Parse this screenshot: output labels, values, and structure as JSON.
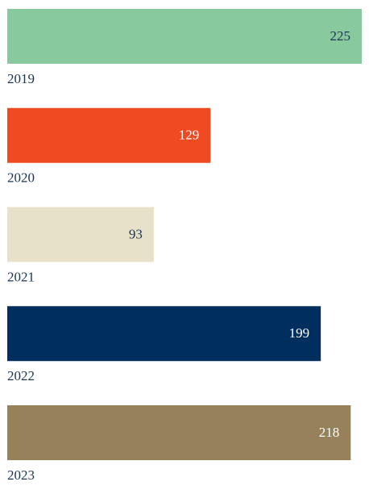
{
  "chart_data": {
    "type": "bar",
    "categories": [
      "2019",
      "2020",
      "2021",
      "2022",
      "2023"
    ],
    "values": [
      225,
      129,
      93,
      199,
      218
    ],
    "colors": [
      "#88c99e",
      "#f04a23",
      "#e8e1c9",
      "#002f5f",
      "#96815a"
    ]
  }
}
